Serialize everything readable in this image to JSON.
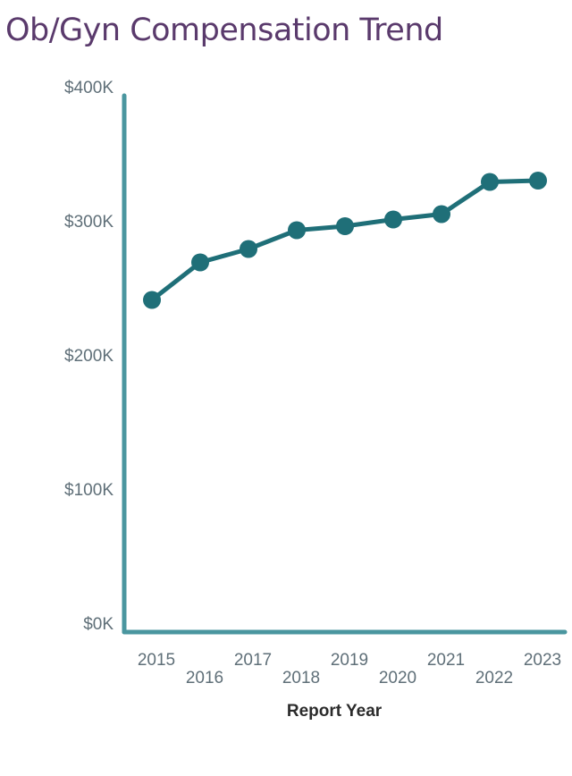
{
  "chart_data": {
    "type": "line",
    "title": "Ob/Gyn Compensation Trend",
    "xlabel": "Report Year",
    "ylabel": "",
    "categories": [
      "2015",
      "2016",
      "2017",
      "2018",
      "2019",
      "2020",
      "2021",
      "2022",
      "2023"
    ],
    "values": [
      241,
      269,
      279,
      293,
      296,
      301,
      305,
      329,
      330
    ],
    "value_unit": "thousand USD",
    "ylim": [
      0,
      400
    ],
    "yticks": [
      0,
      100,
      200,
      300,
      400
    ],
    "ytick_labels": [
      "$0K",
      "$100K",
      "$200K",
      "$300K",
      "$400K"
    ],
    "grid": false,
    "legend": "none",
    "colors": {
      "line": "#1f6f78",
      "axis": "#4a969f",
      "title": "#5a3a6c"
    }
  }
}
